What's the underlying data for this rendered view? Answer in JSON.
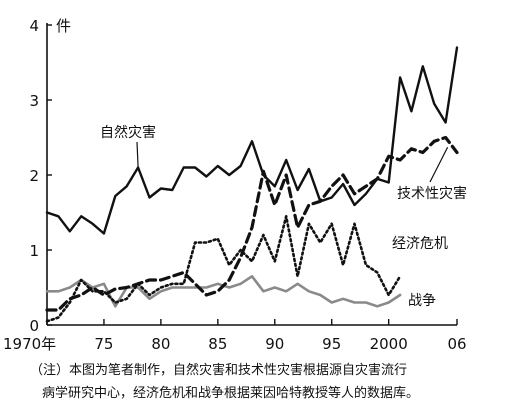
{
  "chart_data": {
    "type": "line",
    "title": "",
    "xlabel": "",
    "ylabel": "件",
    "xlim": [
      1970,
      2006
    ],
    "ylim": [
      0,
      4
    ],
    "y_ticks": [
      {
        "value": 0,
        "label": "0"
      },
      {
        "value": 1,
        "label": "1"
      },
      {
        "value": 2,
        "label": "2"
      },
      {
        "value": 3,
        "label": "3"
      },
      {
        "value": 4,
        "label": "4"
      }
    ],
    "x_ticks": [
      {
        "value": 1970,
        "label": "1970年"
      },
      {
        "value": 1975,
        "label": "75"
      },
      {
        "value": 1980,
        "label": "80"
      },
      {
        "value": 1985,
        "label": "85"
      },
      {
        "value": 1990,
        "label": "90"
      },
      {
        "value": 1995,
        "label": "95"
      },
      {
        "value": 2000,
        "label": "2000"
      },
      {
        "value": 2006,
        "label": "06"
      }
    ],
    "grid": false,
    "legend": "labels on lines",
    "series": [
      {
        "name": "自然灾害",
        "style": "solid",
        "x": [
          1970,
          1971,
          1972,
          1973,
          1974,
          1975,
          1976,
          1977,
          1978,
          1979,
          1980,
          1981,
          1982,
          1983,
          1984,
          1985,
          1986,
          1987,
          1988,
          1989,
          1990,
          1991,
          1992,
          1993,
          1994,
          1995,
          1996,
          1997,
          1998,
          1999,
          2000,
          2001,
          2002,
          2003,
          2004,
          2005,
          2006
        ],
        "values": [
          1.5,
          1.45,
          1.25,
          1.45,
          1.35,
          1.22,
          1.72,
          1.85,
          2.1,
          1.7,
          1.82,
          1.8,
          2.1,
          2.1,
          1.98,
          2.12,
          2.0,
          2.12,
          2.45,
          2.0,
          1.85,
          2.2,
          1.8,
          2.08,
          1.65,
          1.7,
          1.88,
          1.6,
          1.75,
          1.95,
          1.9,
          3.3,
          2.85,
          3.45,
          2.95,
          2.7,
          3.7
        ]
      },
      {
        "name": "技术性灾害",
        "style": "dashed",
        "x": [
          1970,
          1971,
          1972,
          1973,
          1974,
          1975,
          1976,
          1977,
          1978,
          1979,
          1980,
          1981,
          1982,
          1983,
          1984,
          1985,
          1986,
          1987,
          1988,
          1989,
          1990,
          1991,
          1992,
          1993,
          1994,
          1995,
          1996,
          1997,
          1998,
          1999,
          2000,
          2001,
          2002,
          2003,
          2004,
          2005,
          2006
        ],
        "values": [
          0.2,
          0.2,
          0.35,
          0.4,
          0.5,
          0.4,
          0.48,
          0.5,
          0.55,
          0.6,
          0.6,
          0.65,
          0.7,
          0.55,
          0.4,
          0.45,
          0.6,
          0.9,
          1.3,
          2.05,
          1.6,
          2.0,
          1.3,
          1.6,
          1.65,
          1.85,
          2.0,
          1.75,
          1.85,
          1.95,
          2.25,
          2.2,
          2.35,
          2.3,
          2.45,
          2.5,
          2.3
        ]
      },
      {
        "name": "经济危机",
        "style": "dotted",
        "x": [
          1970,
          1971,
          1972,
          1973,
          1974,
          1975,
          1976,
          1977,
          1978,
          1979,
          1980,
          1981,
          1982,
          1983,
          1984,
          1985,
          1986,
          1987,
          1988,
          1989,
          1990,
          1991,
          1992,
          1993,
          1994,
          1995,
          1996,
          1997,
          1998,
          1999,
          2000,
          2001
        ],
        "values": [
          0.05,
          0.1,
          0.3,
          0.6,
          0.45,
          0.45,
          0.3,
          0.35,
          0.55,
          0.4,
          0.5,
          0.55,
          0.55,
          1.1,
          1.1,
          1.15,
          0.8,
          1.0,
          0.85,
          1.2,
          0.85,
          1.45,
          0.65,
          1.35,
          1.1,
          1.35,
          0.8,
          1.35,
          0.8,
          0.7,
          0.4,
          0.65
        ]
      },
      {
        "name": "战争",
        "style": "solid-gray",
        "x": [
          1970,
          1971,
          1972,
          1973,
          1974,
          1975,
          1976,
          1977,
          1978,
          1979,
          1980,
          1981,
          1982,
          1983,
          1984,
          1985,
          1986,
          1987,
          1988,
          1989,
          1990,
          1991,
          1992,
          1993,
          1994,
          1995,
          1996,
          1997,
          1998,
          1999,
          2000,
          2001
        ],
        "values": [
          0.45,
          0.45,
          0.5,
          0.6,
          0.5,
          0.55,
          0.25,
          0.5,
          0.5,
          0.35,
          0.45,
          0.5,
          0.5,
          0.5,
          0.5,
          0.55,
          0.5,
          0.55,
          0.65,
          0.45,
          0.5,
          0.45,
          0.55,
          0.45,
          0.4,
          0.3,
          0.35,
          0.3,
          0.3,
          0.25,
          0.3,
          0.4
        ]
      }
    ]
  },
  "colors": {
    "line": "#111111",
    "war": "#8a8a8a"
  },
  "note": {
    "line1": "（注）本图为笔者制作，自然灾害和技术性灾害根据源自灾害流行",
    "line2": "病学研究中心，经济危机和战争根据莱因哈特教授等人的数据库。"
  }
}
